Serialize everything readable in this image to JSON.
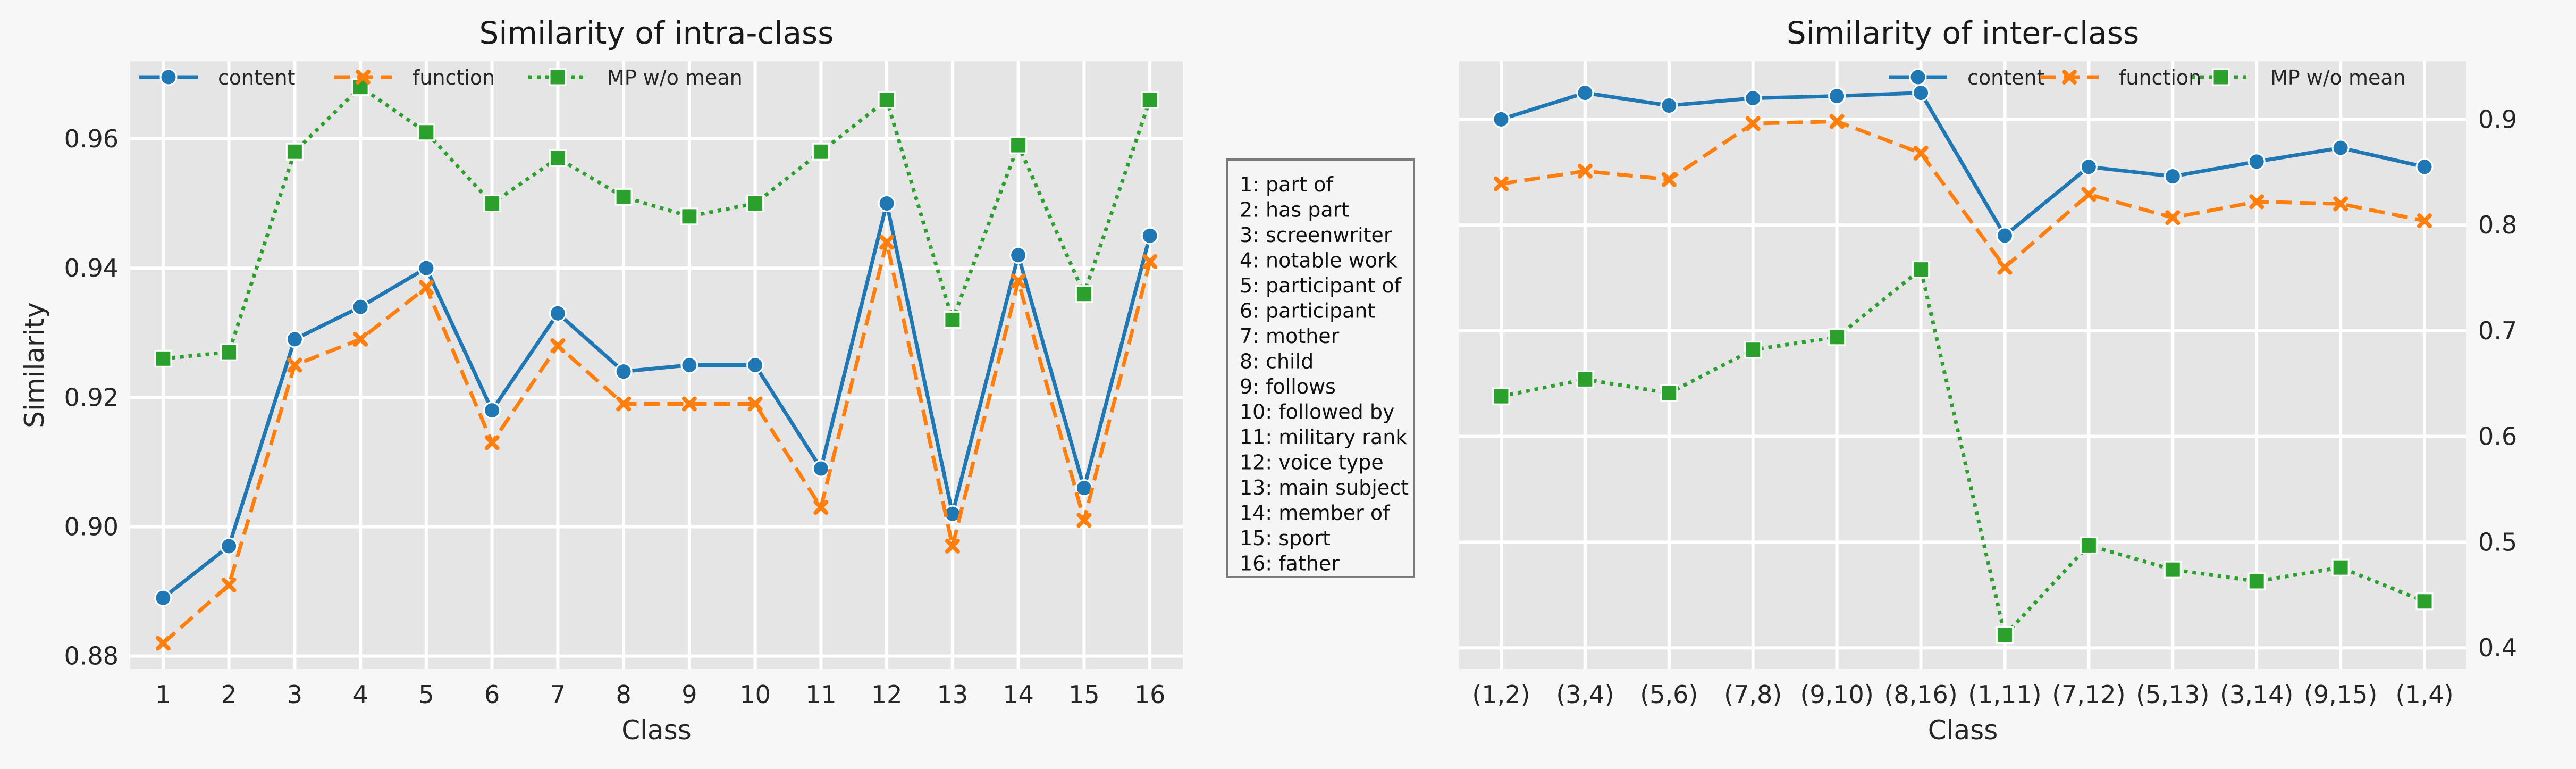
{
  "chart_data": [
    {
      "type": "line",
      "title": "Similarity of intra-class",
      "xlabel": "Class",
      "ylabel": "Similarity",
      "categories": [
        "1",
        "2",
        "3",
        "4",
        "5",
        "6",
        "7",
        "8",
        "9",
        "10",
        "11",
        "12",
        "13",
        "14",
        "15",
        "16"
      ],
      "ylim": [
        0.878,
        0.972
      ],
      "yticks": [
        0.88,
        0.9,
        0.92,
        0.94,
        0.96
      ],
      "ytick_labels": [
        "0.88",
        "0.90",
        "0.92",
        "0.94",
        "0.96"
      ],
      "yaxis_side": "left",
      "grid": true,
      "legend_position": "top",
      "series": [
        {
          "name": "content",
          "color": "#1f77b4",
          "marker": "circle",
          "linestyle": "solid",
          "values": [
            0.889,
            0.897,
            0.929,
            0.934,
            0.94,
            0.918,
            0.933,
            0.924,
            0.925,
            0.925,
            0.909,
            0.95,
            0.902,
            0.942,
            0.906,
            0.945
          ]
        },
        {
          "name": "function",
          "color": "#ff7f0e",
          "marker": "x",
          "linestyle": "dashed",
          "values": [
            0.882,
            0.891,
            0.925,
            0.929,
            0.937,
            0.913,
            0.928,
            0.919,
            0.919,
            0.919,
            0.903,
            0.944,
            0.897,
            0.938,
            0.901,
            0.941
          ]
        },
        {
          "name": "MP w/o mean",
          "color": "#2ca02c",
          "marker": "square",
          "linestyle": "dotted",
          "values": [
            0.926,
            0.927,
            0.958,
            0.968,
            0.961,
            0.95,
            0.957,
            0.951,
            0.948,
            0.95,
            0.958,
            0.966,
            0.932,
            0.959,
            0.936,
            0.966
          ]
        }
      ]
    },
    {
      "type": "line",
      "title": "Similarity of inter-class",
      "xlabel": "Class",
      "ylabel": "",
      "categories": [
        "(1,2)",
        "(3,4)",
        "(5,6)",
        "(7,8)",
        "(9,10)",
        "(8,16)",
        "(1,11)",
        "(7,12)",
        "(5,13)",
        "(3,14)",
        "(9,15)",
        "(1,4)"
      ],
      "ylim": [
        0.38,
        0.955
      ],
      "yticks": [
        0.4,
        0.5,
        0.6,
        0.7,
        0.8,
        0.9
      ],
      "ytick_labels": [
        "0.4",
        "0.5",
        "0.6",
        "0.7",
        "0.8",
        "0.9"
      ],
      "yaxis_side": "right",
      "grid": true,
      "legend_position": "top-right",
      "series": [
        {
          "name": "content",
          "color": "#1f77b4",
          "marker": "circle",
          "linestyle": "solid",
          "values": [
            0.9,
            0.925,
            0.913,
            0.92,
            0.922,
            0.925,
            0.79,
            0.855,
            0.846,
            0.86,
            0.873,
            0.855
          ]
        },
        {
          "name": "function",
          "color": "#ff7f0e",
          "marker": "x",
          "linestyle": "dashed",
          "values": [
            0.839,
            0.851,
            0.843,
            0.896,
            0.898,
            0.868,
            0.76,
            0.829,
            0.807,
            0.822,
            0.82,
            0.804
          ]
        },
        {
          "name": "MP w/o mean",
          "color": "#2ca02c",
          "marker": "square",
          "linestyle": "dotted",
          "values": [
            0.638,
            0.654,
            0.641,
            0.682,
            0.694,
            0.758,
            0.412,
            0.497,
            0.474,
            0.463,
            0.476,
            0.444
          ]
        }
      ]
    }
  ],
  "class_key": [
    "1: part of",
    "2: has part",
    "3: screenwriter",
    "4: notable work",
    "5: participant of",
    "6: participant",
    "7: mother",
    "8: child",
    "9: follows",
    "10: followed by",
    "11: military rank",
    "12: voice type",
    "13: main subject",
    "14: member of",
    "15: sport",
    "16: father"
  ]
}
